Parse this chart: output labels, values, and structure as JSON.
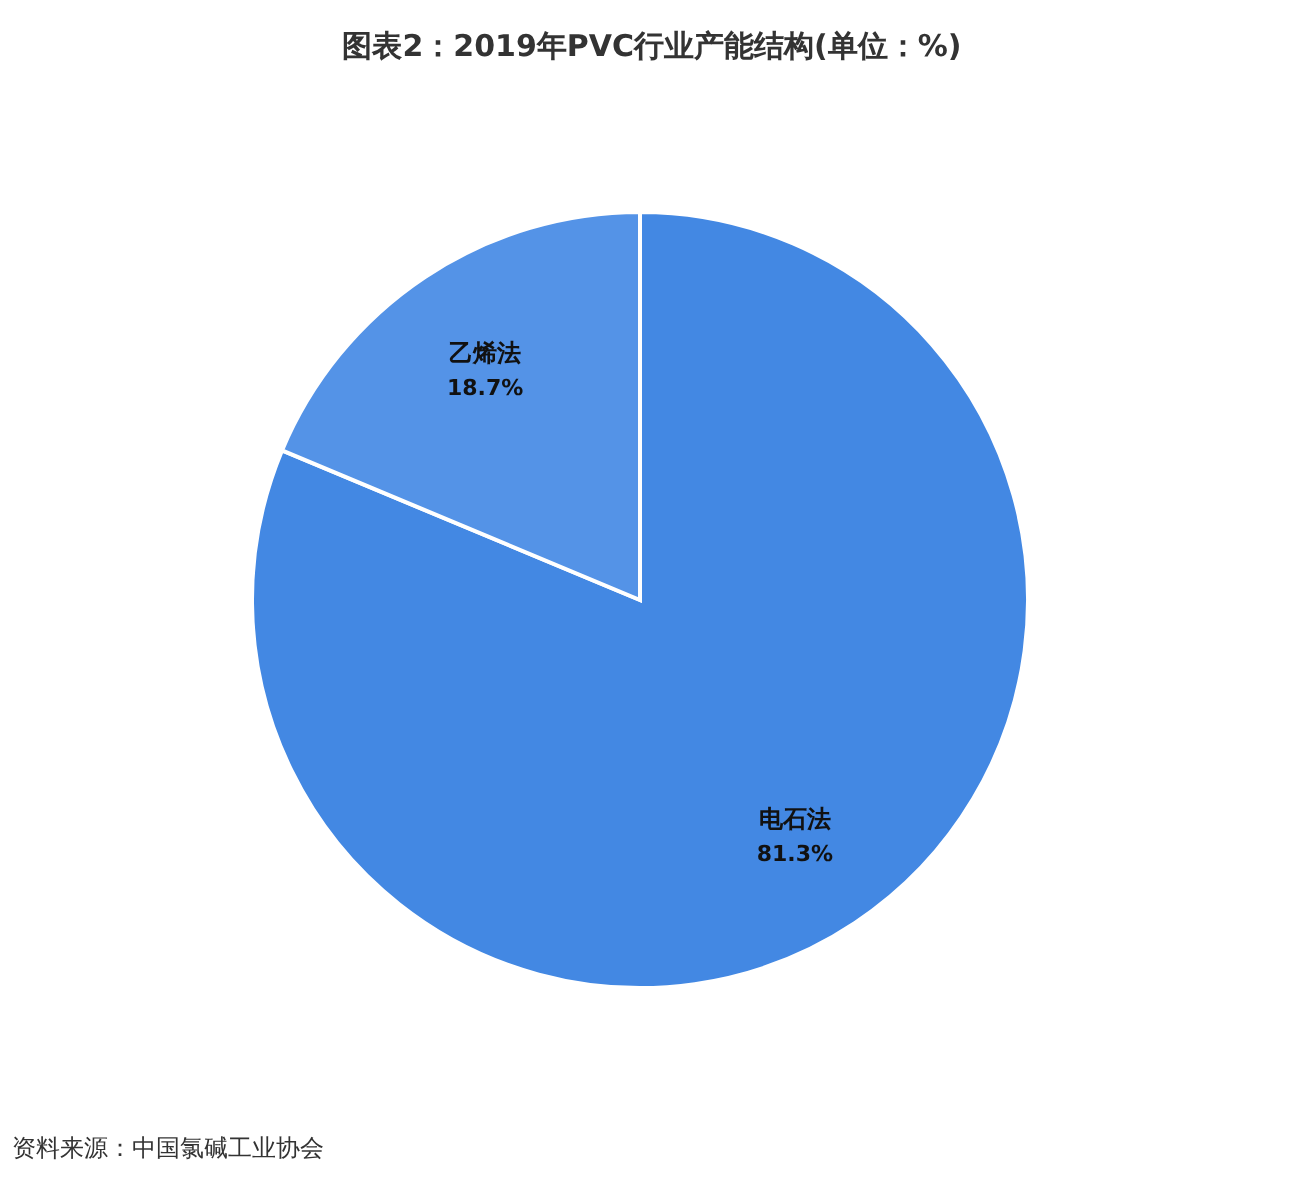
{
  "chart_data": {
    "type": "pie",
    "title": "图表2：2019年PVC行业产能结构(单位：%)",
    "categories": [
      "电石法",
      "乙烯法"
    ],
    "values": [
      81.3,
      18.7
    ],
    "value_labels": [
      "81.3%",
      "18.7%"
    ],
    "colors": [
      "#4388e3",
      "#5493e7"
    ],
    "annotations": [
      "资料来源：中国氯碱工业协会"
    ]
  }
}
